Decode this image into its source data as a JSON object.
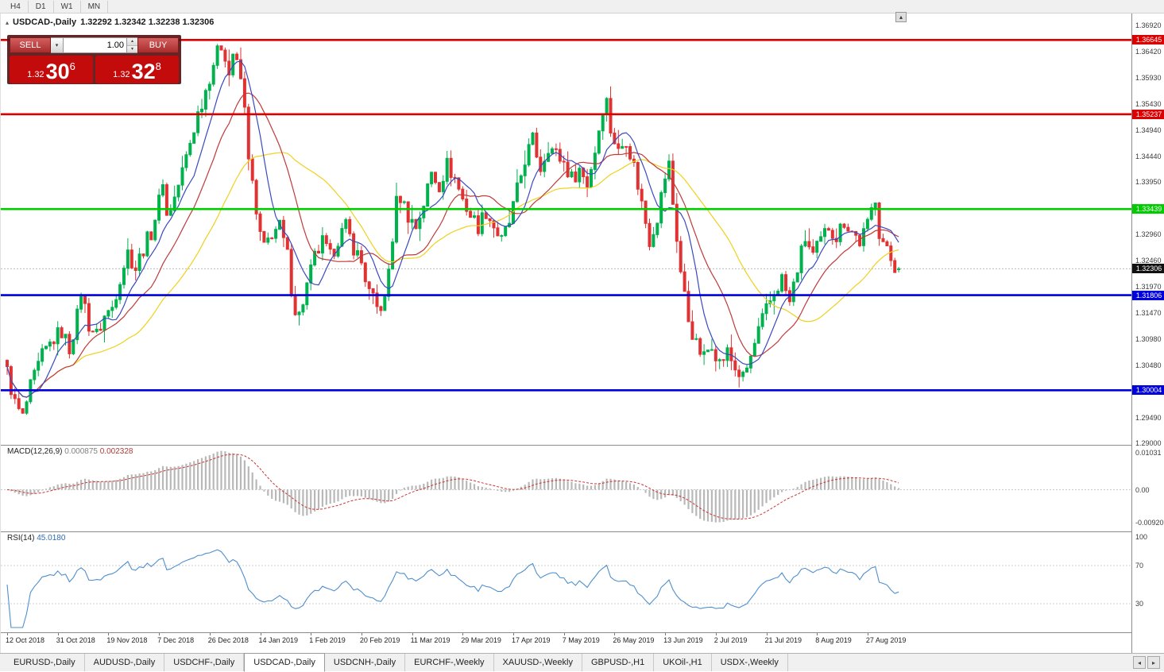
{
  "topbar": {
    "timeframes": [
      "H4",
      "D1",
      "W1",
      "MN"
    ]
  },
  "icons": {
    "title_marker": "▴",
    "dropdown": "▾",
    "spin_up": "▴",
    "spin_down": "▾",
    "collapse": "▴",
    "scroll_left": "◂",
    "scroll_right": "▸"
  },
  "chart_header": {
    "symbol_title": "USDCAD-,Daily",
    "ohlc_text": "1.32292 1.32342 1.32238 1.32306"
  },
  "trade_panel": {
    "sell_label": "SELL",
    "buy_label": "BUY",
    "volume_value": "1.00",
    "bid": {
      "prefix": "1.32",
      "big": "30",
      "sup": "6"
    },
    "ask": {
      "prefix": "1.32",
      "big": "32",
      "sup": "8"
    }
  },
  "chart_data": {
    "type": "candlestick",
    "symbol": "USDCAD-",
    "period": "Daily",
    "current_bar": {
      "open": 1.32292,
      "high": 1.32342,
      "low": 1.32238,
      "close": 1.32306
    },
    "current_price": 1.32306,
    "current_price_label": "1.32306",
    "price_axis": {
      "ticks": [
        "1.36920",
        "1.36420",
        "1.35930",
        "1.35430",
        "1.34940",
        "1.34440",
        "1.33950",
        "1.33450",
        "1.32960",
        "1.32460",
        "1.31970",
        "1.31470",
        "1.30980",
        "1.30480",
        "1.29990",
        "1.29490",
        "1.29000"
      ]
    },
    "levels": [
      {
        "price": 1.36645,
        "label": "1.36645",
        "color": "#dd0000"
      },
      {
        "price": 1.35237,
        "label": "1.35237",
        "color": "#dd0000"
      },
      {
        "price": 1.33439,
        "label": "1.33439",
        "color": "#00cc00"
      },
      {
        "price": 1.31806,
        "label": "1.31806",
        "color": "#0000dd"
      },
      {
        "price": 1.30004,
        "label": "1.30004",
        "color": "#0000dd"
      }
    ],
    "x_axis": {
      "labels": [
        "12 Oct 2018",
        "31 Oct 2018",
        "19 Nov 2018",
        "7 Dec 2018",
        "26 Dec 2018",
        "14 Jan 2019",
        "1 Feb 2019",
        "20 Feb 2019",
        "11 Mar 2019",
        "29 Mar 2019",
        "17 Apr 2019",
        "7 May 2019",
        "26 May 2019",
        "13 Jun 2019",
        "2 Jul 2019",
        "21 Jul 2019",
        "8 Aug 2019",
        "27 Aug 2019"
      ],
      "bar_indices": [
        0,
        13,
        26,
        39,
        52,
        65,
        78,
        91,
        104,
        117,
        130,
        143,
        156,
        169,
        182,
        195,
        208,
        221
      ]
    },
    "candle_colors": {
      "bull": "#00b24e",
      "bear": "#e03232"
    },
    "moving_averages": [
      {
        "period": 34,
        "color": "#efd11e"
      },
      {
        "period": 17,
        "color": "#c03a3a"
      },
      {
        "period": 8,
        "color": "#3a49c0"
      }
    ],
    "candles_approx": {
      "count": 230,
      "anchors": [
        [
          0,
          1.3035
        ],
        [
          2,
          1.2975
        ],
        [
          4,
          1.2948
        ],
        [
          6,
          1.3005
        ],
        [
          9,
          1.3065
        ],
        [
          12,
          1.3098
        ],
        [
          14,
          1.3112
        ],
        [
          16,
          1.308
        ],
        [
          18,
          1.314
        ],
        [
          19,
          1.319
        ],
        [
          21,
          1.3125
        ],
        [
          23,
          1.3105
        ],
        [
          25,
          1.314
        ],
        [
          27,
          1.3158
        ],
        [
          29,
          1.3215
        ],
        [
          31,
          1.3262
        ],
        [
          33,
          1.3232
        ],
        [
          35,
          1.327
        ],
        [
          37,
          1.33
        ],
        [
          39,
          1.3358
        ],
        [
          40,
          1.3402
        ],
        [
          41,
          1.333
        ],
        [
          43,
          1.3365
        ],
        [
          45,
          1.3415
        ],
        [
          47,
          1.347
        ],
        [
          49,
          1.3525
        ],
        [
          51,
          1.357
        ],
        [
          53,
          1.3622
        ],
        [
          55,
          1.3655
        ],
        [
          56,
          1.3638
        ],
        [
          57,
          1.36
        ],
        [
          58,
          1.364
        ],
        [
          60,
          1.359
        ],
        [
          61,
          1.353
        ],
        [
          62,
          1.345
        ],
        [
          63,
          1.3388
        ],
        [
          64,
          1.333
        ],
        [
          65,
          1.3295
        ],
        [
          66,
          1.3268
        ],
        [
          68,
          1.33
        ],
        [
          70,
          1.331
        ],
        [
          72,
          1.3255
        ],
        [
          73,
          1.3195
        ],
        [
          74,
          1.3155
        ],
        [
          75,
          1.3142
        ],
        [
          77,
          1.3198
        ],
        [
          79,
          1.3252
        ],
        [
          81,
          1.328
        ],
        [
          83,
          1.3252
        ],
        [
          85,
          1.3288
        ],
        [
          87,
          1.331
        ],
        [
          89,
          1.3272
        ],
        [
          91,
          1.3242
        ],
        [
          93,
          1.3185
        ],
        [
          95,
          1.3155
        ],
        [
          97,
          1.3168
        ],
        [
          99,
          1.329
        ],
        [
          100,
          1.3355
        ],
        [
          101,
          1.3368
        ],
        [
          103,
          1.3332
        ],
        [
          105,
          1.331
        ],
        [
          107,
          1.3355
        ],
        [
          109,
          1.3412
        ],
        [
          111,
          1.339
        ],
        [
          113,
          1.3428
        ],
        [
          115,
          1.3402
        ],
        [
          117,
          1.3362
        ],
        [
          119,
          1.3332
        ],
        [
          121,
          1.3312
        ],
        [
          123,
          1.334
        ],
        [
          125,
          1.3312
        ],
        [
          127,
          1.3282
        ],
        [
          129,
          1.3318
        ],
        [
          131,
          1.3378
        ],
        [
          133,
          1.3438
        ],
        [
          135,
          1.3475
        ],
        [
          137,
          1.3422
        ],
        [
          139,
          1.3465
        ],
        [
          141,
          1.3448
        ],
        [
          143,
          1.3432
        ],
        [
          145,
          1.3402
        ],
        [
          147,
          1.342
        ],
        [
          149,
          1.3392
        ],
        [
          151,
          1.3455
        ],
        [
          153,
          1.3538
        ],
        [
          154,
          1.3548
        ],
        [
          155,
          1.3495
        ],
        [
          157,
          1.3452
        ],
        [
          159,
          1.3478
        ],
        [
          161,
          1.3425
        ],
        [
          163,
          1.3355
        ],
        [
          165,
          1.3285
        ],
        [
          167,
          1.333
        ],
        [
          169,
          1.3405
        ],
        [
          170,
          1.3428
        ],
        [
          171,
          1.3355
        ],
        [
          173,
          1.3225
        ],
        [
          175,
          1.3135
        ],
        [
          177,
          1.3085
        ],
        [
          179,
          1.3062
        ],
        [
          181,
          1.3092
        ],
        [
          183,
          1.3052
        ],
        [
          185,
          1.3072
        ],
        [
          187,
          1.3042
        ],
        [
          189,
          1.3022
        ],
        [
          191,
          1.3062
        ],
        [
          193,
          1.3112
        ],
        [
          195,
          1.3152
        ],
        [
          197,
          1.3185
        ],
        [
          199,
          1.3212
        ],
        [
          201,
          1.3165
        ],
        [
          203,
          1.3232
        ],
        [
          205,
          1.3288
        ],
        [
          207,
          1.3255
        ],
        [
          209,
          1.3282
        ],
        [
          211,
          1.3312
        ],
        [
          213,
          1.3292
        ],
        [
          215,
          1.3322
        ],
        [
          217,
          1.3302
        ],
        [
          219,
          1.3282
        ],
        [
          221,
          1.3312
        ],
        [
          222,
          1.3342
        ],
        [
          223,
          1.3368
        ],
        [
          224,
          1.3302
        ],
        [
          226,
          1.3262
        ],
        [
          228,
          1.3235
        ],
        [
          229,
          1.32306
        ]
      ]
    },
    "indicators": {
      "macd": {
        "label": "MACD(12,26,9)",
        "value_main": "0.000875",
        "value_signal": "0.002328",
        "axis_max": "0.01031",
        "axis_mid": "0.00",
        "axis_min": "-0.00920",
        "histogram_color": "#b8b8b8",
        "signal_color": "#cc3333"
      },
      "rsi": {
        "label": "RSI(14)",
        "value": "45.0180",
        "axis": [
          "100",
          "70",
          "30"
        ],
        "levels": [
          70,
          30
        ],
        "line_color": "#4f8fce"
      }
    }
  },
  "tabbar": {
    "tabs": [
      {
        "label": "EURUSD-,Daily",
        "active": false
      },
      {
        "label": "AUDUSD-,Daily",
        "active": false
      },
      {
        "label": "USDCHF-,Daily",
        "active": false
      },
      {
        "label": "USDCAD-,Daily",
        "active": true
      },
      {
        "label": "USDCNH-,Daily",
        "active": false
      },
      {
        "label": "EURCHF-,Weekly",
        "active": false
      },
      {
        "label": "XAUUSD-,Weekly",
        "active": false
      },
      {
        "label": "GBPUSD-,H1",
        "active": false
      },
      {
        "label": "UKOil-,H1",
        "active": false
      },
      {
        "label": "USDX-,Weekly",
        "active": false
      }
    ]
  }
}
